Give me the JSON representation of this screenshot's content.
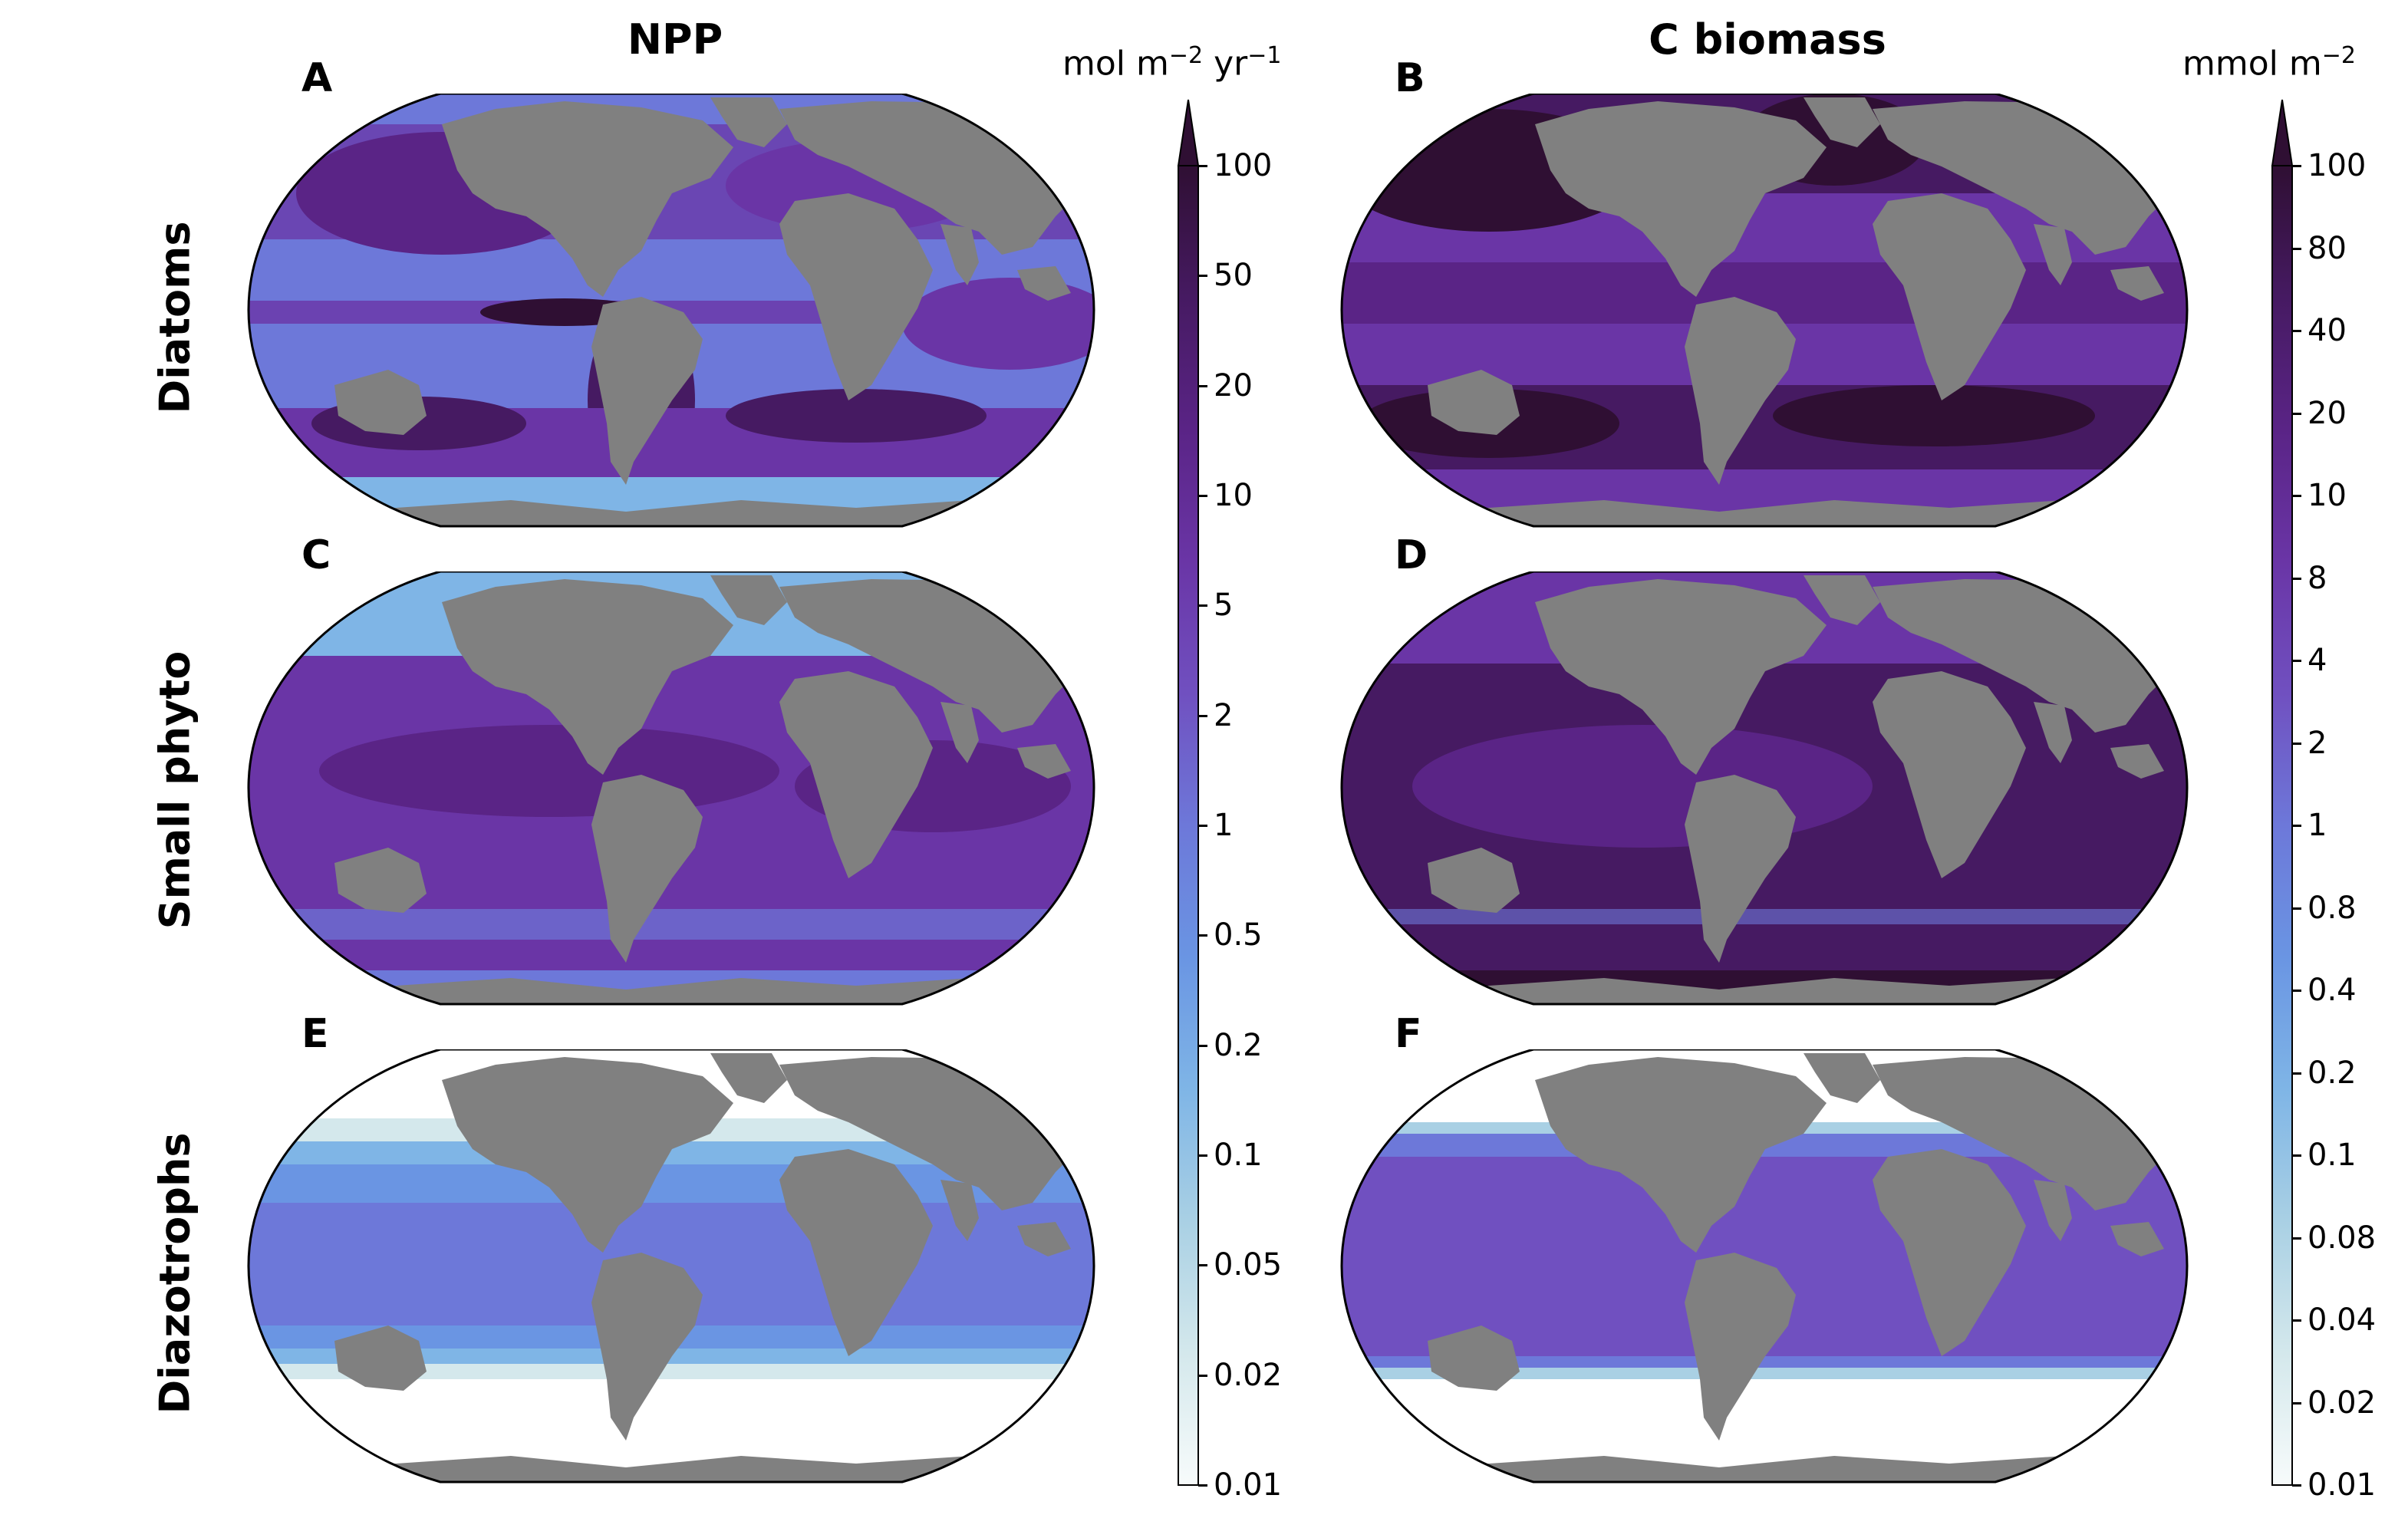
{
  "columns": {
    "npp": {
      "title": "NPP",
      "unit_base": "mol m",
      "unit_sup1": "−2",
      "unit_mid": " yr",
      "unit_sup2": "−1"
    },
    "biomass": {
      "title": "C biomass",
      "unit_base": "mmol m",
      "unit_sup1": "−2"
    }
  },
  "rows": [
    "Diatoms",
    "Small phyto",
    "Diazotrophs"
  ],
  "panels": [
    "A",
    "B",
    "C",
    "D",
    "E",
    "F"
  ],
  "colorbar_npp": {
    "ticks": [
      "100",
      "50",
      "20",
      "10",
      "5",
      "2",
      "1",
      "0.5",
      "0.2",
      "0.1",
      "0.05",
      "0.02",
      "0.01"
    ]
  },
  "colorbar_biomass": {
    "ticks": [
      "100",
      "80",
      "40",
      "20",
      "10",
      "8",
      "4",
      "2",
      "1",
      "0.8",
      "0.4",
      "0.2",
      "0.1",
      "0.08",
      "0.04",
      "0.02",
      "0.01"
    ]
  },
  "colors": {
    "land": "#808080",
    "palette_low_to_high": [
      "#f7fbfb",
      "#d4e8ec",
      "#a9d0e4",
      "#7fb5e6",
      "#6a95e3",
      "#6d78d9",
      "#7050c0",
      "#6a35a6",
      "#5a2486",
      "#461a62",
      "#2f0f33"
    ]
  }
}
